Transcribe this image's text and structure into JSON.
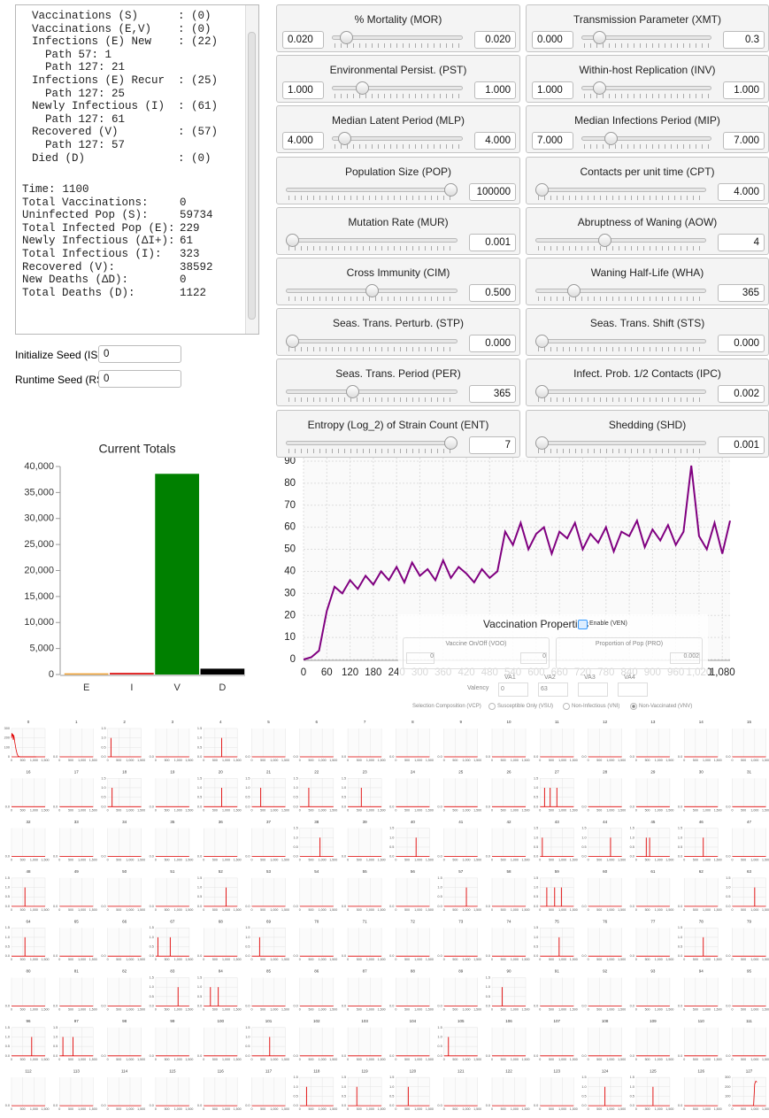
{
  "status": {
    "lines": [
      "  Vaccinations (S)      : (0)",
      "  Vaccinations (E,V)    : (0)",
      "  Infections (E) New    : (22)",
      "    Path 57: 1",
      "    Path 127: 21",
      "  Infections (E) Recur  : (25)",
      "    Path 127: 25",
      "  Newly Infectious (I)  : (61)",
      "    Path 127: 61",
      "  Recovered (V)         : (57)",
      "    Path 127: 57",
      "  Died (D)              : (0)"
    ],
    "stats": [
      [
        "Time:",
        "1100"
      ],
      [
        "Total Vaccinations:",
        "0"
      ],
      [
        "Uninfected Pop (S):",
        "59734"
      ],
      [
        "Total Infected Pop (E):",
        "229"
      ],
      [
        "Newly Infectious (ΔI+):",
        "61"
      ],
      [
        "Total Infectious (I):",
        "323"
      ],
      [
        "Recovered (V):",
        "38592"
      ],
      [
        "New Deaths (ΔD):",
        "0"
      ],
      [
        "Total Deaths (D):",
        "1122"
      ]
    ]
  },
  "seeds": [
    {
      "label": "Initialize Seed (ISD)",
      "value": "0"
    },
    {
      "label": "Runtime Seed (RSD)",
      "value": "0"
    }
  ],
  "parameters": [
    {
      "title": "% Mortality (MOR)",
      "min": "0.020",
      "value": "0.020"
    },
    {
      "title": "Transmission Parameter (XMT)",
      "min": "0.000",
      "value": "0.3"
    },
    {
      "title": "Environmental Persist. (PST)",
      "min": "1.000",
      "value": "1.000"
    },
    {
      "title": "Within-host Replication (INV)",
      "min": "1.000",
      "value": "1.000"
    },
    {
      "title": "Median Latent Period (MLP)",
      "min": "4.000",
      "value": "4.000"
    },
    {
      "title": "Median Infections Period (MIP)",
      "min": "7.000",
      "value": "7.000"
    },
    {
      "title": "Population Size (POP)",
      "value": "100000"
    },
    {
      "title": "Contacts per unit time (CPT)",
      "value": "4.000"
    },
    {
      "title": "Mutation Rate (MUR)",
      "value": "0.001"
    },
    {
      "title": "Abruptness of Waning (AOW)",
      "value": "4"
    },
    {
      "title": "Cross Immunity (CIM)",
      "value": "0.500"
    },
    {
      "title": "Waning Half-Life (WHA)",
      "value": "365"
    },
    {
      "title": "Seas. Trans. Perturb. (STP)",
      "value": "0.000"
    },
    {
      "title": "Seas. Trans. Shift (STS)",
      "value": "0.000"
    },
    {
      "title": "Seas. Trans. Period (PER)",
      "value": "365"
    },
    {
      "title": "Infect. Prob. 1/2 Contacts (IPC)",
      "value": "0.002"
    },
    {
      "title": "Entropy (Log_2) of Strain Count (ENT)",
      "value": "7"
    },
    {
      "title": "Shedding (SHD)",
      "value": "0.001"
    }
  ],
  "vaccination": {
    "title": "Vaccination Properties",
    "enable": "Enable (VEN)",
    "on_off": {
      "label": "Vaccine On/Off (VOO)",
      "min": "0",
      "value": "0"
    },
    "proportion": {
      "label": "Proportion of Pop (PRO)",
      "value": "0.002"
    },
    "valency": "Valency",
    "va": [
      {
        "label": "VA1",
        "value": "0"
      },
      {
        "label": "VA2",
        "value": "63"
      },
      {
        "label": "VA3"
      },
      {
        "label": "VA4"
      }
    ],
    "selection": "Selection Composition (VCP)",
    "options": [
      "Susceptible Only (VSU)",
      "Non-Infectious (VNI)",
      "Non-Vaccinated (VNV)"
    ],
    "selected": 2
  },
  "chart_data": [
    {
      "type": "bar",
      "title": "Current Totals",
      "categories": [
        "E",
        "I",
        "V",
        "D"
      ],
      "values": [
        229,
        323,
        38592,
        1122
      ],
      "colors": [
        "#f0a030",
        "#e02020",
        "#008000",
        "#000000"
      ],
      "ylim": [
        0,
        40000
      ],
      "yticks": [
        0,
        {
          "value": 5000,
          "label": "5,000"
        },
        {
          "value": 10000,
          "label": "10,000"
        },
        {
          "value": 15000,
          "label": "15,000"
        },
        {
          "value": 20000,
          "label": "20,000"
        },
        {
          "value": 25000,
          "label": "25,000"
        },
        {
          "value": 30000,
          "label": "30,000"
        },
        {
          "value": 35000,
          "label": "35,000"
        },
        {
          "value": 40000,
          "label": "40,000"
        }
      ]
    },
    {
      "type": "line",
      "color": "#800080",
      "grid": true,
      "xlim": [
        0,
        1100
      ],
      "ylim": [
        0,
        90
      ],
      "xticks": [
        0,
        60,
        120,
        180,
        240,
        300,
        360,
        420,
        480,
        540,
        600,
        660,
        720,
        780,
        840,
        900,
        960,
        {
          "value": 1020,
          "label": "1,020"
        },
        {
          "value": 1080,
          "label": "1,080"
        }
      ],
      "yticks": [
        0,
        10,
        20,
        30,
        40,
        50,
        60,
        70,
        80,
        90
      ],
      "x": [
        0,
        20,
        40,
        60,
        80,
        100,
        120,
        140,
        160,
        180,
        200,
        220,
        240,
        260,
        280,
        300,
        320,
        340,
        360,
        380,
        400,
        420,
        440,
        460,
        480,
        500,
        520,
        540,
        560,
        580,
        600,
        620,
        640,
        660,
        680,
        700,
        720,
        740,
        760,
        780,
        800,
        820,
        840,
        860,
        880,
        900,
        920,
        940,
        960,
        980,
        1000,
        1020,
        1040,
        1060,
        1080,
        1100
      ],
      "values": [
        0,
        1,
        4,
        22,
        33,
        30,
        36,
        32,
        38,
        34,
        40,
        36,
        42,
        35,
        44,
        38,
        41,
        36,
        45,
        37,
        42,
        39,
        35,
        41,
        37,
        40,
        58,
        52,
        62,
        50,
        57,
        60,
        48,
        58,
        55,
        62,
        50,
        57,
        53,
        60,
        49,
        58,
        56,
        63,
        51,
        59,
        54,
        61,
        52,
        58,
        88,
        56,
        50,
        62,
        48,
        63
      ]
    },
    {
      "type": "small_multiples",
      "color": "#e00000",
      "xlim": [
        0,
        1500
      ],
      "xticks": [
        0,
        500,
        {
          "value": 1000,
          "label": "1,000"
        },
        {
          "value": 1500,
          "label": "1,500"
        }
      ],
      "spike_ylim": [
        0,
        1.5
      ],
      "spike_yticks": [
        {
          "value": 0,
          "label": "0.0"
        },
        {
          "value": 0.5,
          "label": "0.5"
        },
        {
          "value": 1,
          "label": "1.0"
        },
        {
          "value": 1.5,
          "label": "1.5"
        }
      ],
      "count_ylim": [
        0,
        300
      ],
      "count_yticks": [
        0,
        100,
        200,
        300
      ],
      "panels": [
        {
          "title": "0",
          "x": [
            0,
            20,
            40,
            60,
            80,
            100,
            150,
            200,
            250,
            300,
            400,
            600,
            800,
            1000,
            1100
          ],
          "values": [
            200,
            250,
            220,
            240,
            180,
            230,
            150,
            80,
            30,
            5,
            0,
            0,
            0,
            0,
            0
          ]
        },
        {
          "title": "1"
        },
        {
          "title": "2",
          "spikes": [
            150
          ]
        },
        {
          "title": "3"
        },
        {
          "title": "4",
          "spikes": [
            800
          ]
        },
        {
          "title": "5"
        },
        {
          "title": "6"
        },
        {
          "title": "7"
        },
        {
          "title": "8"
        },
        {
          "title": "9"
        },
        {
          "title": "10"
        },
        {
          "title": "11"
        },
        {
          "title": "12"
        },
        {
          "title": "13"
        },
        {
          "title": "14"
        },
        {
          "title": "15"
        },
        {
          "title": "16"
        },
        {
          "title": "17"
        },
        {
          "title": "18",
          "spikes": [
            200
          ]
        },
        {
          "title": "19"
        },
        {
          "title": "20",
          "spikes": [
            800
          ]
        },
        {
          "title": "21",
          "spikes": [
            400
          ]
        },
        {
          "title": "22",
          "spikes": [
            400
          ]
        },
        {
          "title": "23",
          "spikes": [
            600
          ]
        },
        {
          "title": "24"
        },
        {
          "title": "25"
        },
        {
          "title": "26"
        },
        {
          "title": "27",
          "spikes": [
            200,
            450,
            750
          ]
        },
        {
          "title": "28"
        },
        {
          "title": "29"
        },
        {
          "title": "30"
        },
        {
          "title": "31"
        },
        {
          "title": "32"
        },
        {
          "title": "33"
        },
        {
          "title": "34"
        },
        {
          "title": "35"
        },
        {
          "title": "36"
        },
        {
          "title": "37"
        },
        {
          "title": "38",
          "spikes": [
            900
          ]
        },
        {
          "title": "39"
        },
        {
          "title": "40",
          "spikes": [
            900
          ]
        },
        {
          "title": "41"
        },
        {
          "title": "42"
        },
        {
          "title": "43",
          "spikes": [
            100
          ]
        },
        {
          "title": "44",
          "spikes": [
            1000
          ]
        },
        {
          "title": "45",
          "spikes": [
            450,
            600
          ]
        },
        {
          "title": "46",
          "spikes": [
            850
          ]
        },
        {
          "title": "47"
        },
        {
          "title": "48",
          "spikes": [
            600
          ]
        },
        {
          "title": "49"
        },
        {
          "title": "50"
        },
        {
          "title": "51"
        },
        {
          "title": "52",
          "spikes": [
            1000
          ]
        },
        {
          "title": "53"
        },
        {
          "title": "54"
        },
        {
          "title": "55"
        },
        {
          "title": "56"
        },
        {
          "title": "57",
          "spikes": [
            1000
          ]
        },
        {
          "title": "58"
        },
        {
          "title": "59",
          "spikes": [
            300,
            650,
            950
          ]
        },
        {
          "title": "60"
        },
        {
          "title": "61"
        },
        {
          "title": "62"
        },
        {
          "title": "63",
          "spikes": [
            1000
          ]
        },
        {
          "title": "64",
          "spikes": [
            600
          ]
        },
        {
          "title": "65"
        },
        {
          "title": "66"
        },
        {
          "title": "67",
          "spikes": [
            100,
            650
          ]
        },
        {
          "title": "68"
        },
        {
          "title": "69",
          "spikes": [
            350
          ]
        },
        {
          "title": "70"
        },
        {
          "title": "71"
        },
        {
          "title": "72"
        },
        {
          "title": "73"
        },
        {
          "title": "74"
        },
        {
          "title": "75",
          "spikes": [
            850
          ]
        },
        {
          "title": "76"
        },
        {
          "title": "77"
        },
        {
          "title": "78",
          "spikes": [
            850
          ]
        },
        {
          "title": "79"
        },
        {
          "title": "80"
        },
        {
          "title": "81"
        },
        {
          "title": "82"
        },
        {
          "title": "83",
          "spikes": [
            1000
          ]
        },
        {
          "title": "84",
          "spikes": [
            300,
            650
          ]
        },
        {
          "title": "85"
        },
        {
          "title": "86"
        },
        {
          "title": "87"
        },
        {
          "title": "88"
        },
        {
          "title": "89"
        },
        {
          "title": "90",
          "spikes": [
            450
          ]
        },
        {
          "title": "91"
        },
        {
          "title": "92"
        },
        {
          "title": "93"
        },
        {
          "title": "94"
        },
        {
          "title": "95"
        },
        {
          "title": "96",
          "spikes": [
            900
          ]
        },
        {
          "title": "97",
          "spikes": [
            150,
            600
          ]
        },
        {
          "title": "98"
        },
        {
          "title": "99"
        },
        {
          "title": "100"
        },
        {
          "title": "101",
          "spikes": [
            800
          ]
        },
        {
          "title": "102"
        },
        {
          "title": "103"
        },
        {
          "title": "104"
        },
        {
          "title": "105",
          "spikes": [
            200
          ]
        },
        {
          "title": "106"
        },
        {
          "title": "107"
        },
        {
          "title": "108"
        },
        {
          "title": "109"
        },
        {
          "title": "110"
        },
        {
          "title": "111"
        },
        {
          "title": "112"
        },
        {
          "title": "113"
        },
        {
          "title": "114"
        },
        {
          "title": "115"
        },
        {
          "title": "116"
        },
        {
          "title": "117"
        },
        {
          "title": "118",
          "spikes": [
            300
          ]
        },
        {
          "title": "119",
          "spikes": [
            400
          ]
        },
        {
          "title": "120",
          "spikes": [
            550
          ]
        },
        {
          "title": "121"
        },
        {
          "title": "122"
        },
        {
          "title": "123"
        },
        {
          "title": "124",
          "spikes": [
            750
          ]
        },
        {
          "title": "125",
          "spikes": [
            750
          ]
        },
        {
          "title": "126"
        },
        {
          "title": "127",
          "x": [
            0,
            200,
            400,
            600,
            800,
            900,
            950,
            1000,
            1050,
            1100
          ],
          "values": [
            0,
            0,
            0,
            0,
            0,
            0,
            2,
            230,
            260,
            250
          ]
        }
      ]
    }
  ]
}
